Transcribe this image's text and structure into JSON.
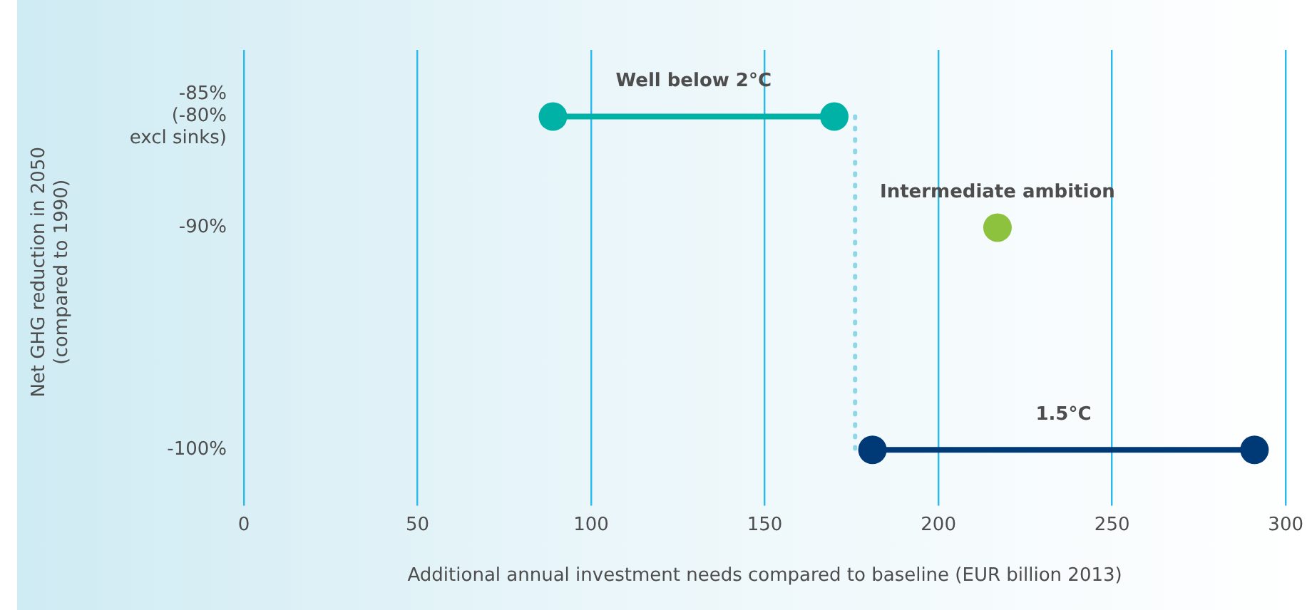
{
  "chart_data": {
    "type": "line",
    "xlabel": "Additional annual investment needs compared to baseline (EUR billion 2013)",
    "ylabel": "Net GHG reduction in 2050\n(compared to 1990)",
    "xlim": [
      0,
      300
    ],
    "xticks": [
      0,
      50,
      100,
      150,
      200,
      250,
      300
    ],
    "ylim": [
      -102,
      -82
    ],
    "yticks": [
      {
        "value": -85,
        "label": "-85%\n(-80%\nexcl sinks)"
      },
      {
        "value": -90,
        "label": "-90%"
      },
      {
        "value": -100,
        "label": "-100%"
      }
    ],
    "grid": "x",
    "marker": "circle",
    "series": [
      {
        "name": "Well below 2°C",
        "color": "#00b2a6",
        "x": [
          89,
          170
        ],
        "values": [
          -85,
          -85
        ]
      },
      {
        "color": "#8fd6ea",
        "x": [
          176,
          176
        ],
        "values": [
          -85,
          -100
        ],
        "marker": "none",
        "line_style": "dotted"
      },
      {
        "name": "Intermediate ambition",
        "type": "scatter",
        "color": "#8dc23f",
        "x": [
          217
        ],
        "values": [
          -90
        ]
      },
      {
        "name": "1.5°C",
        "color": "#003a76",
        "x": [
          181,
          291
        ],
        "values": [
          -100,
          -100
        ]
      }
    ]
  }
}
